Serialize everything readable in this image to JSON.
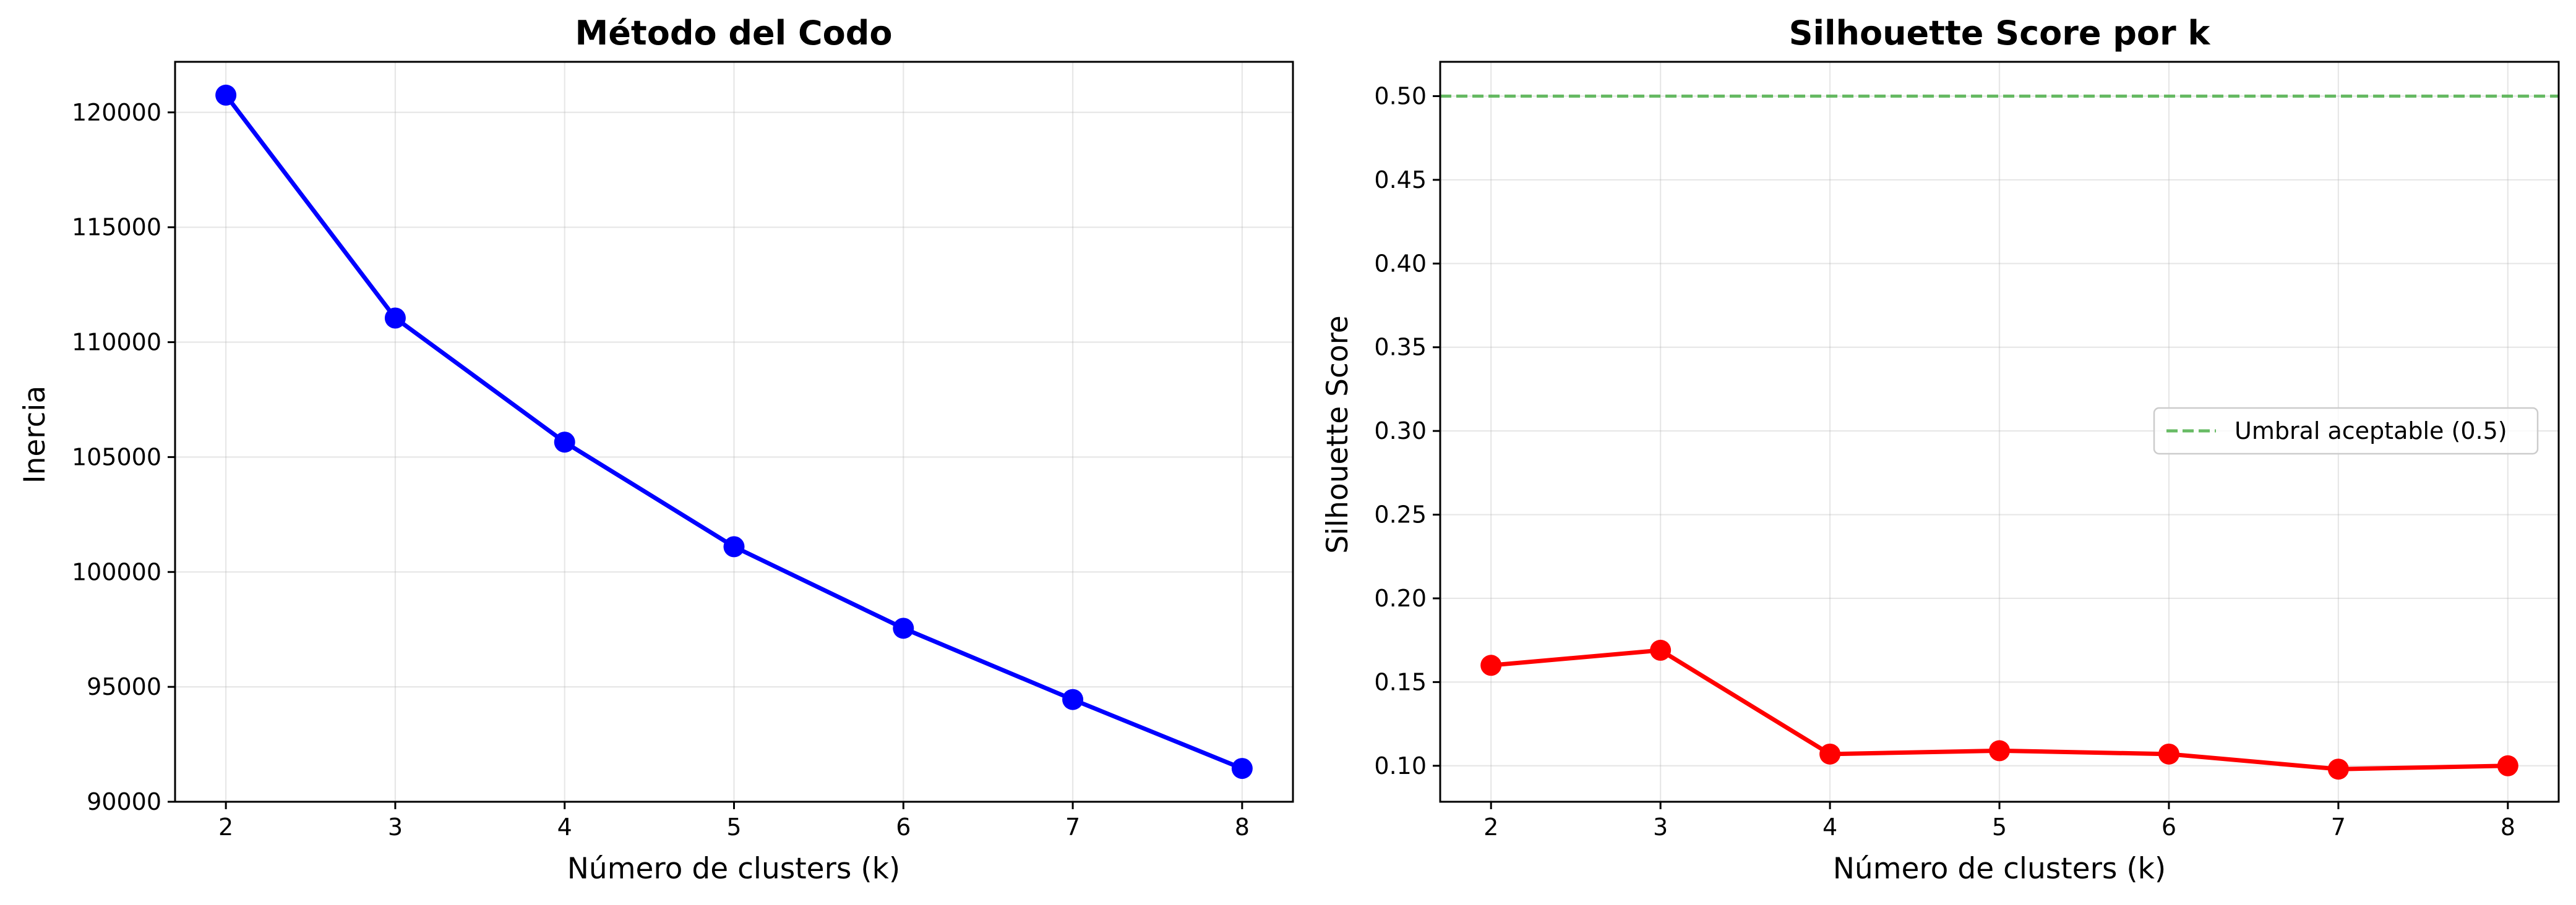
{
  "chart_data": [
    {
      "type": "line",
      "title": "Método del Codo",
      "xlabel": "Número de clusters (k)",
      "ylabel": "Inercia",
      "x": [
        2,
        3,
        4,
        5,
        6,
        7,
        8
      ],
      "series": [
        {
          "name": "Inercia",
          "color": "#0000ff",
          "values": [
            120750,
            111050,
            105650,
            101100,
            97550,
            94450,
            91450
          ]
        }
      ],
      "xlim": [
        1.7,
        8.3
      ],
      "ylim": [
        90000,
        122200
      ],
      "xticks": [
        "2",
        "3",
        "4",
        "5",
        "6",
        "7",
        "8"
      ],
      "yticks": [
        "90000",
        "95000",
        "100000",
        "105000",
        "110000",
        "115000",
        "120000"
      ],
      "grid": true
    },
    {
      "type": "line",
      "title": "Silhouette Score por k",
      "xlabel": "Número de clusters (k)",
      "ylabel": "Silhouette Score",
      "x": [
        2,
        3,
        4,
        5,
        6,
        7,
        8
      ],
      "series": [
        {
          "name": "Silhouette Score",
          "color": "#ff0000",
          "values": [
            0.16,
            0.169,
            0.107,
            0.109,
            0.107,
            0.098,
            0.1
          ]
        }
      ],
      "reference_line": {
        "y": 0.5,
        "label": "Umbral aceptable (0.5)",
        "color": "#4daf4a",
        "style": "dashed"
      },
      "legend": {
        "position": "center-right",
        "entries": [
          "Umbral aceptable (0.5)"
        ]
      },
      "xlim": [
        1.7,
        8.3
      ],
      "ylim": [
        0.0785,
        0.5205
      ],
      "xticks": [
        "2",
        "3",
        "4",
        "5",
        "6",
        "7",
        "8"
      ],
      "yticks": [
        "0.10",
        "0.15",
        "0.20",
        "0.25",
        "0.30",
        "0.35",
        "0.40",
        "0.45",
        "0.50"
      ],
      "grid": true
    }
  ]
}
